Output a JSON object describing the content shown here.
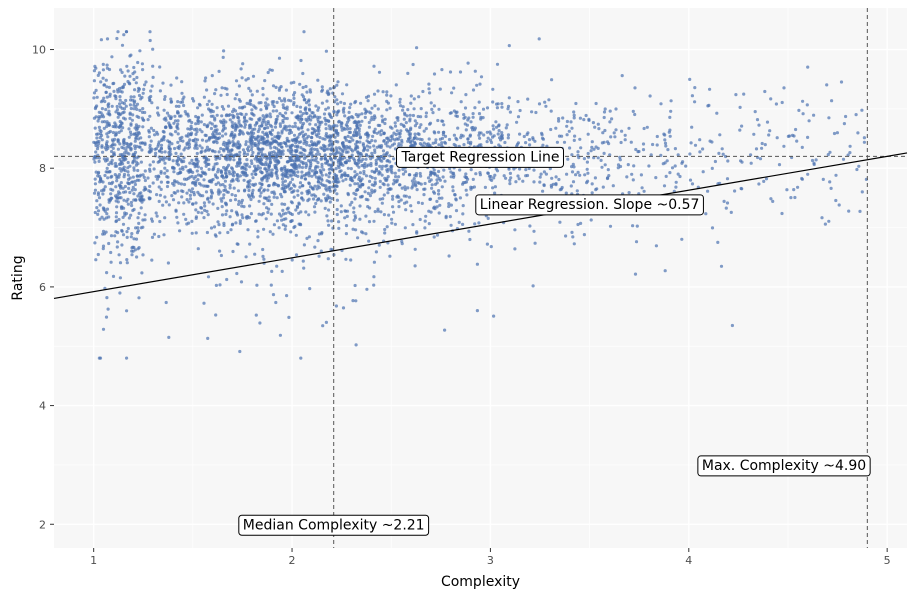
{
  "chart_data": {
    "type": "scatter",
    "title": "",
    "xlabel": "Complexity",
    "ylabel": "Rating",
    "xlim": [
      0.8,
      5.1
    ],
    "ylim": [
      1.6,
      10.7
    ],
    "x_ticks": [
      1,
      2,
      3,
      4,
      5
    ],
    "y_ticks": [
      2,
      4,
      6,
      8,
      10
    ],
    "grid": true,
    "legend": "none",
    "colors": {
      "points": "#4c72b0",
      "panel": "#f7f7f7",
      "grid": "#ffffff",
      "reference": "#555555",
      "regression": "#000000"
    },
    "scatter_summary": {
      "x_range": [
        1.0,
        4.9
      ],
      "typical_rating": 8.2,
      "points_count_approx": 4000
    },
    "reference_lines": {
      "target_rating": 8.2,
      "median_complexity": 2.21,
      "max_complexity": 4.9
    },
    "regression_line": {
      "slope": 0.57,
      "intercept": 5.35
    },
    "annotations": [
      {
        "text": "Target Regression Line",
        "x": 2.95,
        "y": 8.2
      },
      {
        "text": "Linear Regression. Slope ~0.57",
        "x": 3.5,
        "y": 7.4
      },
      {
        "text": "Max. Complexity ~4.90",
        "x": 4.48,
        "y": 3.0
      },
      {
        "text": "Median Complexity ~2.21",
        "x": 2.21,
        "y": 2.0
      }
    ]
  }
}
